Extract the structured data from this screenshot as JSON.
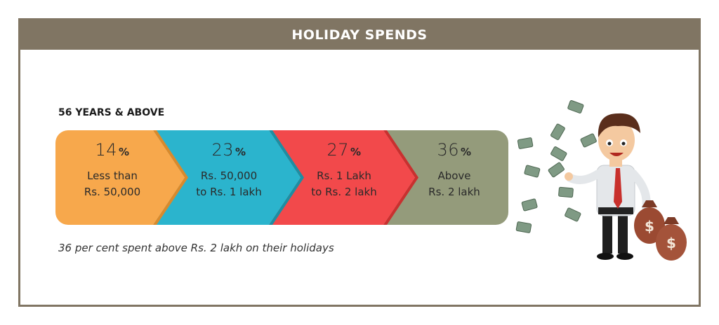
{
  "header": {
    "title": "HOLIDAY SPENDS"
  },
  "section": {
    "label": "56 YEARS & ABOVE"
  },
  "caption": "36 per cent spent above Rs. 2 lakh on their holidays",
  "percent_symbol": "%",
  "chart_data": {
    "type": "bar",
    "orientation": "horizontal-stacked",
    "title": "HOLIDAY SPENDS",
    "group": "56 YEARS & ABOVE",
    "categories": [
      "Less than Rs. 50,000",
      "Rs. 50,000 to Rs. 1 lakh",
      "Rs. 1 Lakh to Rs. 2 lakh",
      "Above Rs. 2 lakh"
    ],
    "values": [
      14,
      23,
      27,
      36
    ],
    "unit": "%",
    "segments": [
      {
        "pct": "14",
        "line1": "Less than",
        "line2": "Rs. 50,000",
        "color": "#f7a84c",
        "edge": "#d98a2c"
      },
      {
        "pct": "23",
        "line1": "Rs. 50,000",
        "line2": "to Rs. 1 lakh",
        "color": "#2bb4cd",
        "edge": "#1d8ea3"
      },
      {
        "pct": "27",
        "line1": "Rs. 1 Lakh",
        "line2": "to Rs. 2 lakh",
        "color": "#f2494b",
        "edge": "#c9302f"
      },
      {
        "pct": "36",
        "line1": "Above",
        "line2": "Rs. 2 lakh",
        "color": "#949b7b",
        "edge": "#949b7b"
      }
    ]
  },
  "illustration": {
    "icon": "businessman-with-money-bags-illustration"
  }
}
